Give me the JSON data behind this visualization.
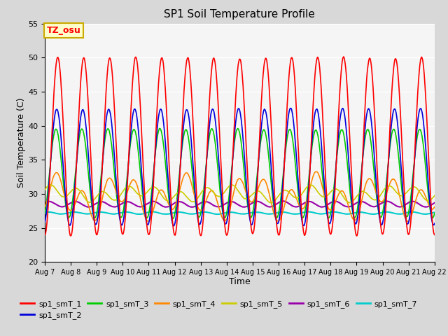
{
  "title": "SP1 Soil Temperature Profile",
  "xlabel": "Time",
  "ylabel": "Soil Temperature (C)",
  "ylim": [
    20,
    55
  ],
  "annotation": "TZ_osu",
  "legend_labels": [
    "sp1_smT_1",
    "sp1_smT_2",
    "sp1_smT_3",
    "sp1_smT_4",
    "sp1_smT_5",
    "sp1_smT_6",
    "sp1_smT_7"
  ],
  "colors": {
    "sp1_smT_1": "#ff0000",
    "sp1_smT_2": "#0000dd",
    "sp1_smT_3": "#00cc00",
    "sp1_smT_4": "#ff8800",
    "sp1_smT_5": "#cccc00",
    "sp1_smT_6": "#9900aa",
    "sp1_smT_7": "#00cccc"
  },
  "fig_bg": "#d8d8d8",
  "plot_bg": "#f5f5f5",
  "annotation_bg": "#ffffcc",
  "annotation_border": "#ccaa00",
  "yticks": [
    20,
    25,
    30,
    35,
    40,
    45,
    50,
    55
  ],
  "xtick_start": 7,
  "xtick_end": 22
}
